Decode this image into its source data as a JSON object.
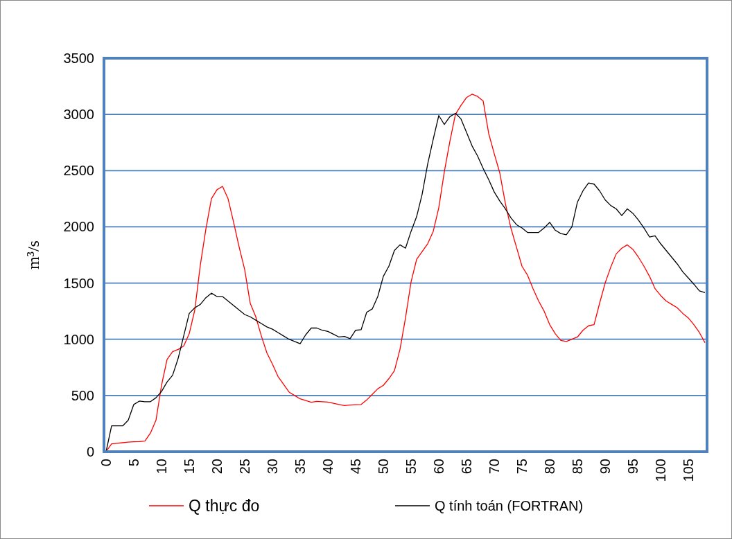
{
  "chart_data": {
    "type": "line",
    "ylabel": "m³/s",
    "x": [
      0,
      1,
      2,
      3,
      4,
      5,
      6,
      7,
      8,
      9,
      10,
      11,
      12,
      13,
      14,
      15,
      16,
      17,
      18,
      19,
      20,
      21,
      22,
      23,
      24,
      25,
      26,
      27,
      28,
      29,
      30,
      31,
      32,
      33,
      34,
      35,
      36,
      37,
      38,
      39,
      40,
      41,
      42,
      43,
      44,
      45,
      46,
      47,
      48,
      49,
      50,
      51,
      52,
      53,
      54,
      55,
      56,
      57,
      58,
      59,
      60,
      61,
      62,
      63,
      64,
      65,
      66,
      67,
      68,
      69,
      70,
      71,
      72,
      73,
      74,
      75,
      76,
      77,
      78,
      79,
      80,
      81,
      82,
      83,
      84,
      85,
      86,
      87,
      88,
      89,
      90,
      91,
      92,
      93,
      94,
      95,
      96,
      97,
      98,
      99,
      100,
      101,
      102,
      103,
      104,
      105,
      106,
      107,
      108
    ],
    "xlim": [
      0,
      108
    ],
    "xticks": [
      0,
      5,
      10,
      15,
      20,
      25,
      30,
      35,
      40,
      45,
      50,
      55,
      60,
      65,
      70,
      75,
      80,
      85,
      90,
      95,
      100,
      105
    ],
    "ylim": [
      0,
      3500
    ],
    "yticks": [
      0,
      500,
      1000,
      1500,
      2000,
      2500,
      3000,
      3500
    ],
    "grid": "y",
    "legend": "bottom",
    "marker": "none",
    "line_style": "solid",
    "series": [
      {
        "name": "Q thực đo",
        "color": "#ff0000",
        "values": [
          0,
          70,
          75,
          80,
          85,
          88,
          90,
          95,
          165,
          280,
          590,
          820,
          890,
          910,
          940,
          1050,
          1260,
          1660,
          1980,
          2250,
          2330,
          2360,
          2250,
          2040,
          1820,
          1620,
          1320,
          1200,
          1030,
          880,
          780,
          670,
          600,
          530,
          500,
          470,
          455,
          440,
          448,
          445,
          441,
          430,
          420,
          410,
          415,
          418,
          420,
          460,
          510,
          560,
          590,
          650,
          720,
          910,
          1190,
          1510,
          1710,
          1780,
          1850,
          1960,
          2170,
          2490,
          2760,
          3000,
          3080,
          3150,
          3180,
          3160,
          3120,
          2830,
          2650,
          2480,
          2210,
          1990,
          1820,
          1650,
          1570,
          1450,
          1340,
          1250,
          1130,
          1050,
          990,
          980,
          1000,
          1020,
          1080,
          1120,
          1130,
          1320,
          1500,
          1640,
          1760,
          1810,
          1840,
          1800,
          1730,
          1650,
          1560,
          1450,
          1390,
          1340,
          1310,
          1280,
          1230,
          1190,
          1130,
          1060,
          970
        ]
      },
      {
        "name": "Q tính toán (FORTRAN)",
        "color": "#000000",
        "values": [
          0,
          230,
          230,
          230,
          280,
          420,
          450,
          445,
          445,
          480,
          535,
          620,
          680,
          830,
          1030,
          1230,
          1280,
          1310,
          1370,
          1410,
          1380,
          1380,
          1340,
          1300,
          1260,
          1220,
          1200,
          1170,
          1140,
          1110,
          1090,
          1060,
          1030,
          1000,
          980,
          960,
          1040,
          1100,
          1100,
          1080,
          1070,
          1045,
          1020,
          1025,
          1005,
          1080,
          1085,
          1240,
          1270,
          1380,
          1560,
          1650,
          1790,
          1840,
          1810,
          1960,
          2090,
          2290,
          2560,
          2780,
          2990,
          2910,
          2980,
          3010,
          2960,
          2840,
          2720,
          2630,
          2520,
          2420,
          2310,
          2230,
          2160,
          2080,
          2020,
          1990,
          1950,
          1950,
          1950,
          1990,
          2040,
          1970,
          1940,
          1930,
          2000,
          2220,
          2320,
          2390,
          2380,
          2320,
          2240,
          2190,
          2160,
          2100,
          2160,
          2120,
          2060,
          1990,
          1910,
          1920,
          1850,
          1790,
          1730,
          1670,
          1600,
          1545,
          1490,
          1430,
          1415
        ]
      }
    ]
  }
}
